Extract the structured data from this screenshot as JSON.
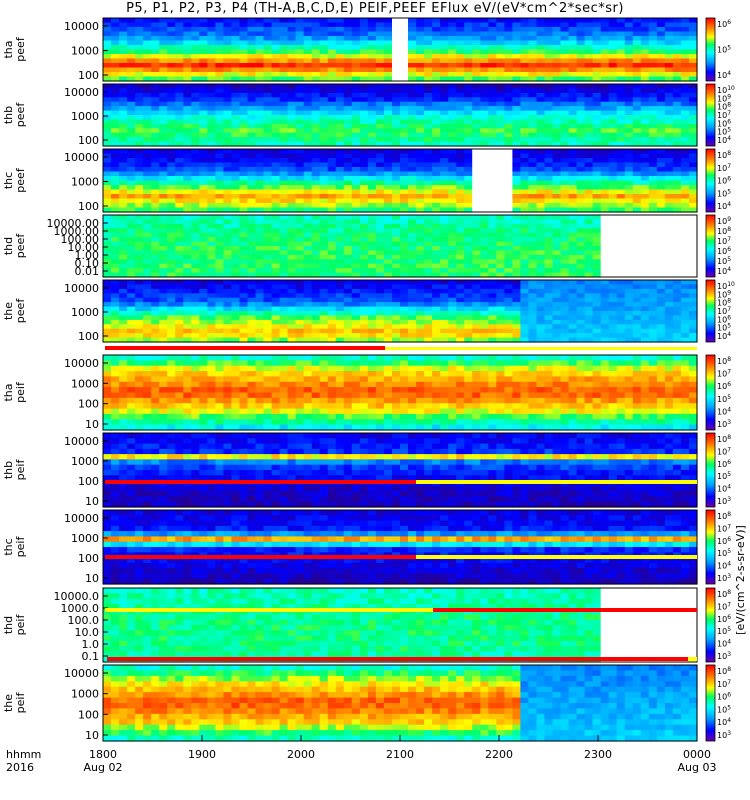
{
  "title": "P5, P1, P2, P3, P4 (TH-A,B,C,D,E) PEIF,PEEF EFlux eV/(eV*cm^2*sec*sr)",
  "chart_data": {
    "type": "heatmap",
    "x_axis": {
      "label_top": "hhmm",
      "label_bottom": "2016",
      "ticks": [
        "1800",
        "1900",
        "2000",
        "2100",
        "2200",
        "2300",
        "0000"
      ],
      "date_labels": [
        "Aug 02",
        "Aug 03"
      ]
    },
    "colorbar_label": "[eV/(cm^2-s-sr-eV)]",
    "panels": [
      {
        "probe": "tha",
        "product": "peef",
        "ylabel": [
          "tha",
          "peef"
        ],
        "yticks": [
          "10000",
          "1000",
          "100"
        ],
        "cb_ticks": [
          "10^6",
          "10^5",
          "10^4"
        ]
      },
      {
        "probe": "thb",
        "product": "peef",
        "ylabel": [
          "thb",
          "peef"
        ],
        "yticks": [
          "10000",
          "1000",
          "100"
        ],
        "cb_ticks": [
          "10^10",
          "10^9",
          "10^8",
          "10^7",
          "10^6",
          "10^5",
          "10^4"
        ]
      },
      {
        "probe": "thc",
        "product": "peef",
        "ylabel": [
          "thc",
          "peef"
        ],
        "yticks": [
          "10000",
          "1000",
          "100"
        ],
        "cb_ticks": [
          "10^8",
          "10^7",
          "10^6",
          "10^5",
          "10^4"
        ]
      },
      {
        "probe": "thd",
        "product": "peef",
        "ylabel": [
          "thd",
          "peef"
        ],
        "yticks": [
          "10000.00",
          "1000.00",
          "100.00",
          "10.00",
          "1.00",
          "0.10",
          "0.01"
        ],
        "cb_ticks": [
          "10^9",
          "10^8",
          "10^7",
          "10^6",
          "10^5",
          "10^4"
        ]
      },
      {
        "probe": "the",
        "product": "peef",
        "ylabel": [
          "the",
          "peef"
        ],
        "yticks": [
          "10000",
          "1000",
          "100"
        ],
        "cb_ticks": [
          "10^10",
          "10^9",
          "10^8",
          "10^7",
          "10^6",
          "10^5",
          "10^4"
        ]
      },
      {
        "probe": "tha",
        "product": "peif",
        "ylabel": [
          "tha",
          "peif"
        ],
        "yticks": [
          "10000",
          "1000",
          "100",
          "10"
        ],
        "cb_ticks": [
          "10^8",
          "10^7",
          "10^6",
          "10^5",
          "10^4",
          "10^3"
        ]
      },
      {
        "probe": "thb",
        "product": "peif",
        "ylabel": [
          "thb",
          "peif"
        ],
        "yticks": [
          "10000",
          "1000",
          "100",
          "10"
        ],
        "cb_ticks": [
          "10^8",
          "10^7",
          "10^6",
          "10^5",
          "10^4",
          "10^3"
        ]
      },
      {
        "probe": "thc",
        "product": "peif",
        "ylabel": [
          "thc",
          "peif"
        ],
        "yticks": [
          "10000",
          "1000",
          "100",
          "10"
        ],
        "cb_ticks": [
          "10^8",
          "10^7",
          "10^6",
          "10^5",
          "10^4",
          "10^3"
        ]
      },
      {
        "probe": "thd",
        "product": "peif",
        "ylabel": [
          "thd",
          "peif"
        ],
        "yticks": [
          "10000.0",
          "1000.0",
          "100.0",
          "10.0",
          "1.0",
          "0.1"
        ],
        "cb_ticks": [
          "10^8",
          "10^7",
          "10^6",
          "10^5",
          "10^4",
          "10^3"
        ]
      },
      {
        "probe": "the",
        "product": "peif",
        "ylabel": [
          "the",
          "peif"
        ],
        "yticks": [
          "10000",
          "1000",
          "100",
          "10"
        ],
        "cb_ticks": [
          "10^8",
          "10^7",
          "10^6",
          "10^5",
          "10^4",
          "10^3"
        ]
      }
    ]
  }
}
